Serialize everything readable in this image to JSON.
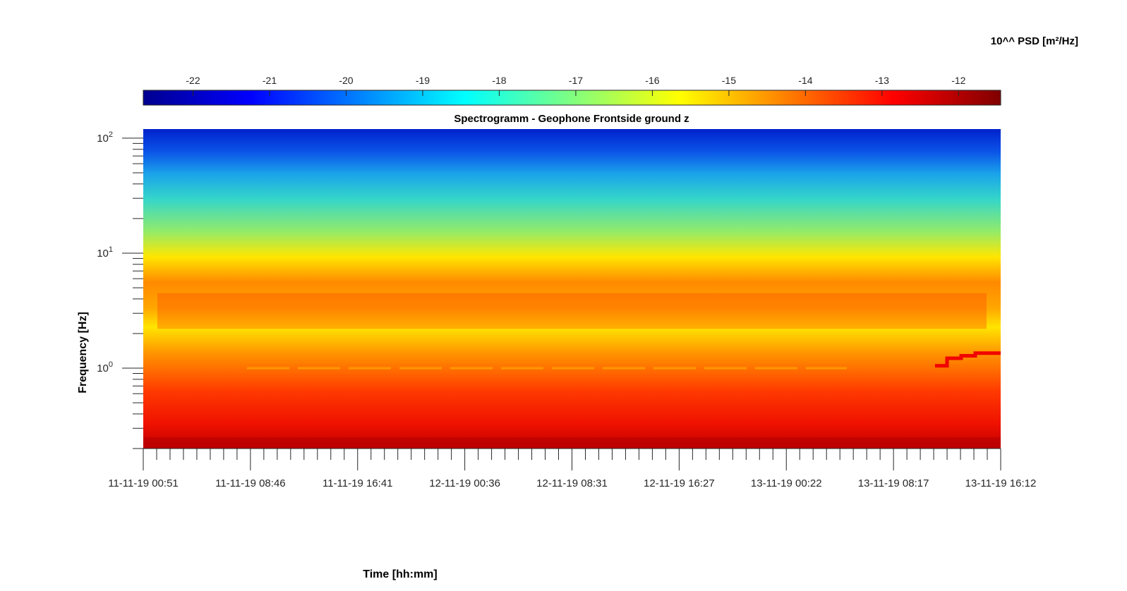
{
  "chart_data": {
    "type": "heatmap",
    "title": "Spectrogramm - Geophone Frontside ground z",
    "xlabel": "Time [hh:mm]",
    "ylabel": "Frequency [Hz]",
    "colorbar_label": "10^^ PSD [m²/Hz]",
    "colorbar_ticks": [
      "-22",
      "-21",
      "-20",
      "-19",
      "-18",
      "-17",
      "-16",
      "-15",
      "-14",
      "-13",
      "-12"
    ],
    "colorbar_range": [
      -22.65,
      -11.45
    ],
    "x_tick_labels": [
      "11-11-19 00:51",
      "11-11-19 08:46",
      "11-11-19 16:41",
      "12-11-19 00:36",
      "12-11-19 08:31",
      "12-11-19 16:27",
      "13-11-19 00:22",
      "13-11-19 08:17",
      "13-11-19 16:12"
    ],
    "x_range": [
      "11-11-19 00:51",
      "13-11-19 16:12"
    ],
    "y_scale": "log",
    "y_range_hz": [
      0.2,
      120
    ],
    "y_tick_labels": [
      {
        "base": "10",
        "exp": "2"
      },
      {
        "base": "10",
        "exp": "1"
      },
      {
        "base": "10",
        "exp": "0"
      }
    ],
    "colormap": "jet",
    "psd_profile_by_frequency": [
      {
        "freq_hz": 0.2,
        "log10_psd": -12.3
      },
      {
        "freq_hz": 0.4,
        "log10_psd": -13.2
      },
      {
        "freq_hz": 0.7,
        "log10_psd": -14.2
      },
      {
        "freq_hz": 1.0,
        "log10_psd": -15.9
      },
      {
        "freq_hz": 3.0,
        "log10_psd": -14.0
      },
      {
        "freq_hz": 6.0,
        "log10_psd": -16.2
      },
      {
        "freq_hz": 10.0,
        "log10_psd": -17.2
      },
      {
        "freq_hz": 30.0,
        "log10_psd": -18.6
      },
      {
        "freq_hz": 60.0,
        "log10_psd": -19.6
      },
      {
        "freq_hz": 120.0,
        "log10_psd": -21.4
      }
    ],
    "features": [
      {
        "label": "1 Hz line",
        "freq_hz": 1.0,
        "log10_psd": -14.6
      },
      {
        "label": "step line end",
        "freq_hz": 1.35,
        "log10_psd": -12.7
      }
    ],
    "grid": false
  }
}
